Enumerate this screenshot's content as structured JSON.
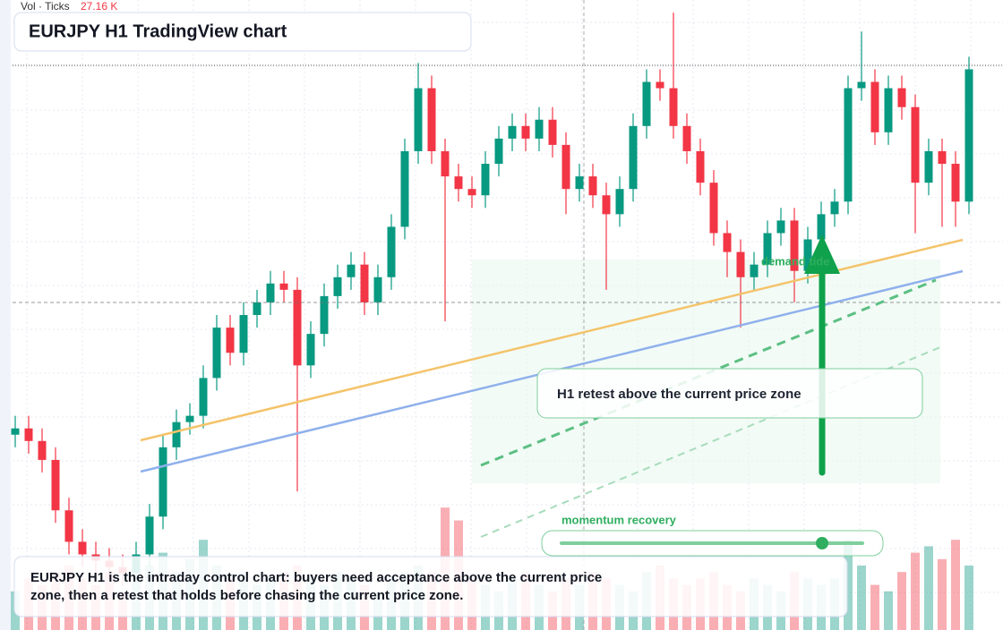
{
  "chart_data": {
    "type": "candlestick",
    "title": "EURJPY H1 TradingView chart",
    "volume_label": "Vol · Ticks",
    "volume_value": "27.16 K",
    "annotation": "demand tide",
    "zone_label": "H1 retest above the current price zone",
    "slider_label": "momentum recovery",
    "caption": "EURJPY H1 is the intraday control chart: buyers need acceptance above the current price zone, then a retest that holds before chasing the current price zone.",
    "up_color": "#089981",
    "down_color": "#f23645",
    "ylim": [
      0,
      100
    ],
    "vlim": [
      0,
      20
    ],
    "open": [
      31,
      32,
      30,
      27,
      19,
      14,
      12,
      11,
      10,
      9,
      12,
      18,
      29,
      33,
      34,
      40,
      48,
      44,
      50,
      52,
      55,
      54,
      42,
      47,
      53,
      56,
      58,
      52,
      56,
      64,
      76,
      86,
      76,
      72,
      70,
      69,
      74,
      78,
      80,
      78,
      81,
      77,
      70,
      72,
      69,
      66,
      70,
      80,
      87,
      86,
      80,
      76,
      71,
      63,
      60,
      56,
      58,
      63,
      65,
      57,
      62,
      66,
      68,
      86,
      87,
      79,
      86,
      83,
      71,
      76,
      74,
      68
    ],
    "high": [
      34,
      34,
      32,
      29,
      21,
      16,
      14,
      13,
      12,
      14,
      20,
      31,
      35,
      36,
      42,
      50,
      50,
      52,
      54,
      57,
      57,
      56,
      49,
      55,
      58,
      60,
      60,
      58,
      66,
      78,
      90,
      88,
      78,
      74,
      72,
      76,
      80,
      82,
      82,
      83,
      83,
      79,
      74,
      74,
      71,
      72,
      82,
      89,
      89,
      98,
      82,
      78,
      73,
      65,
      62,
      60,
      65,
      67,
      67,
      64,
      68,
      70,
      88,
      95,
      89,
      88,
      88,
      85,
      78,
      78,
      76,
      91
    ],
    "low": [
      29,
      28,
      25,
      17,
      12,
      10,
      9,
      8,
      7,
      8,
      10,
      16,
      27,
      31,
      32,
      38,
      42,
      42,
      48,
      50,
      52,
      22,
      40,
      45,
      51,
      54,
      50,
      50,
      54,
      62,
      74,
      74,
      49,
      68,
      67,
      67,
      72,
      76,
      76,
      76,
      75,
      66,
      68,
      67,
      54,
      64,
      68,
      78,
      84,
      78,
      74,
      69,
      61,
      56,
      48,
      54,
      56,
      61,
      52,
      55,
      60,
      64,
      66,
      84,
      77,
      77,
      81,
      63,
      69,
      64,
      64,
      66
    ],
    "close": [
      32,
      30,
      27,
      19,
      14,
      12,
      11,
      10,
      9,
      12,
      18,
      29,
      33,
      34,
      40,
      48,
      44,
      50,
      52,
      55,
      54,
      42,
      47,
      53,
      56,
      58,
      52,
      56,
      64,
      76,
      86,
      76,
      72,
      70,
      69,
      74,
      78,
      80,
      78,
      81,
      77,
      70,
      72,
      69,
      66,
      70,
      80,
      87,
      86,
      80,
      76,
      71,
      63,
      60,
      56,
      58,
      63,
      65,
      57,
      62,
      66,
      68,
      86,
      87,
      79,
      86,
      83,
      71,
      76,
      74,
      68,
      89
    ],
    "volume": [
      6,
      8,
      7,
      9,
      10,
      8,
      7,
      9,
      6,
      8,
      10,
      12,
      9,
      11,
      14,
      10,
      8,
      9,
      7,
      8,
      9,
      10,
      8,
      7,
      9,
      8,
      7,
      6,
      8,
      9,
      10,
      9,
      19,
      17,
      8,
      7,
      6,
      8,
      9,
      7,
      6,
      8,
      7,
      9,
      8,
      7,
      6,
      9,
      10,
      8,
      7,
      8,
      9,
      7,
      6,
      8,
      7,
      6,
      9,
      8,
      7,
      8,
      14,
      10,
      7,
      6,
      9,
      12,
      13,
      11,
      14,
      10
    ]
  }
}
